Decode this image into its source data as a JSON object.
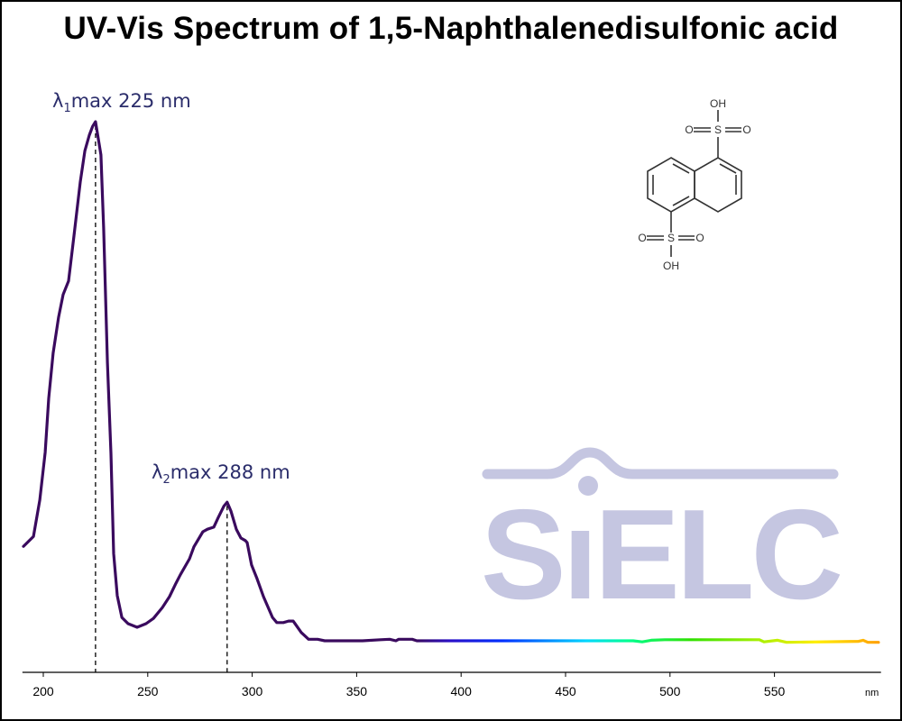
{
  "chart_data": {
    "type": "line",
    "title": "UV-Vis Spectrum of 1,5-Naphthalenedisulfonic acid",
    "xlabel": "nm",
    "ylabel": "",
    "xlim": [
      190,
      601
    ],
    "ylim": [
      -0.06,
      1.1
    ],
    "xticks": [
      200,
      250,
      300,
      350,
      400,
      450,
      500,
      550
    ],
    "grid": false,
    "series": [
      {
        "name": "1,5-Naphthalenedisulfonic acid",
        "color": "#3a0a5e",
        "x": [
          190.5,
          195.3,
          198.3,
          200.9,
          202.6,
          204.7,
          207.3,
          209.5,
          212.1,
          214.7,
          217.7,
          219.9,
          222.0,
          223.6,
          225.0,
          227.6,
          228.9,
          230.7,
          232.4,
          233.7,
          235.4,
          237.6,
          240.6,
          244.9,
          249.2,
          252.7,
          257.0,
          260.4,
          263.5,
          265.6,
          270.0,
          272.1,
          276.4,
          278.6,
          281.6,
          283.8,
          286.4,
          288.0,
          289.8,
          292.4,
          294.6,
          296.7,
          297.6,
          299.7,
          302.3,
          305.4,
          309.7,
          311.8,
          314.9,
          317.4,
          319.6,
          320.5,
          323.5,
          327.0,
          331.3,
          334.7,
          352.8,
          361.5,
          365.8,
          368.8,
          370.1,
          376.6,
          378.8,
          482.4,
          486.7,
          491.0,
          497.5,
          542.8,
          545.0,
          551.5,
          555.8,
          590.3,
          592.5,
          594.7,
          599.8
        ],
        "y": [
          0.182,
          0.201,
          0.271,
          0.363,
          0.467,
          0.554,
          0.623,
          0.667,
          0.693,
          0.78,
          0.884,
          0.944,
          0.974,
          0.991,
          1.0,
          0.936,
          0.795,
          0.536,
          0.361,
          0.168,
          0.087,
          0.045,
          0.033,
          0.026,
          0.033,
          0.043,
          0.064,
          0.085,
          0.111,
          0.127,
          0.158,
          0.181,
          0.21,
          0.215,
          0.219,
          0.238,
          0.259,
          0.267,
          0.25,
          0.215,
          0.198,
          0.193,
          0.189,
          0.146,
          0.12,
          0.085,
          0.045,
          0.035,
          0.035,
          0.038,
          0.038,
          0.033,
          0.016,
          0.003,
          0.003,
          0,
          0,
          0.002,
          0.003,
          0,
          0.003,
          0.003,
          0,
          0,
          -0.002,
          0.001,
          0.002,
          0.002,
          -0.002,
          0.001,
          -0.003,
          -0.001,
          0.001,
          -0.003,
          -0.003
        ]
      }
    ],
    "annotations": [
      {
        "symbol": "λ",
        "sub": "1",
        "text": "max  225 nm",
        "x": 225,
        "y": 1.0
      },
      {
        "symbol": "λ",
        "sub": "2",
        "text": "max  288 nm",
        "x": 288,
        "y": 0.267
      }
    ],
    "gradient_stops": [
      {
        "nm": 378,
        "color": "#3a0a5e"
      },
      {
        "nm": 395,
        "color": "#2a10c8"
      },
      {
        "nm": 420,
        "color": "#0030ff"
      },
      {
        "nm": 460,
        "color": "#00d8ff"
      },
      {
        "nm": 480,
        "color": "#00ff90"
      },
      {
        "nm": 510,
        "color": "#30e000"
      },
      {
        "nm": 545,
        "color": "#b0f000"
      },
      {
        "nm": 570,
        "color": "#ffee00"
      },
      {
        "nm": 600,
        "color": "#ffa000"
      }
    ]
  },
  "structure": {
    "oh_top": "OH",
    "oh_bottom": "OH",
    "o": "O",
    "s": "S"
  },
  "watermark": {
    "text": "SIELC",
    "color": "#c5c6e1"
  }
}
